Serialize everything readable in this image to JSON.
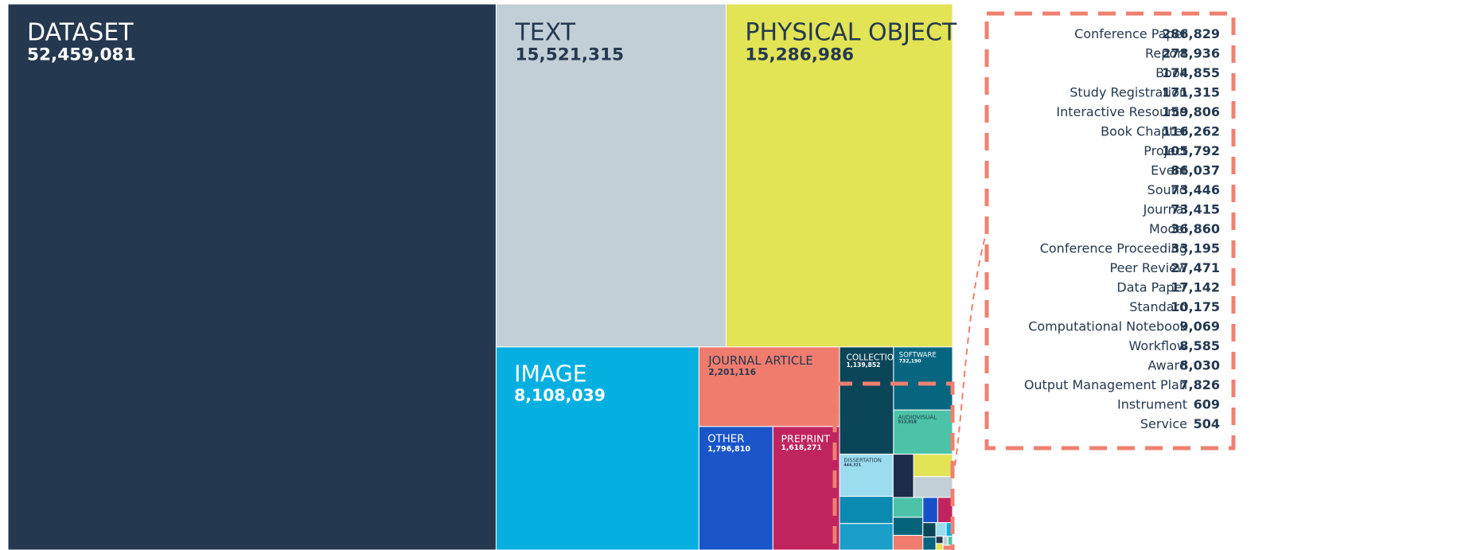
{
  "chart_data": {
    "type": "treemap",
    "items": [
      {
        "name": "DATASET",
        "value": 52459081,
        "value_label": "52,459,081",
        "color": "#243950"
      },
      {
        "name": "TEXT",
        "value": 15521315,
        "value_label": "15,521,315",
        "color": "#c3cfd6"
      },
      {
        "name": "PHYSICAL OBJECT",
        "value": 15286986,
        "value_label": "15,286,986",
        "color": "#e2e355"
      },
      {
        "name": "IMAGE",
        "value": 8108039,
        "value_label": "8,108,039",
        "color": "#05b0e0"
      },
      {
        "name": "JOURNAL ARTICLE",
        "value": 2201116,
        "value_label": "2,201,116",
        "color": "#f07c6e"
      },
      {
        "name": "OTHER",
        "value": 1796810,
        "value_label": "1,796,810",
        "color": "#1a55c9"
      },
      {
        "name": "PREPRINT",
        "value": 1618271,
        "value_label": "1,618,271",
        "color": "#c0245f"
      },
      {
        "name": "COLLECTION",
        "value": 1139852,
        "value_label": "1,139,852",
        "color": "#0a4658"
      },
      {
        "name": "SOFTWARE",
        "value": 732190,
        "value_label": "732,190",
        "color": "#066680"
      },
      {
        "name": "AUDIOVISUAL",
        "value": 513018,
        "value_label": "513,018",
        "color": "#4cc3a8"
      },
      {
        "name": "DISSERTATION",
        "value": 444321,
        "value_label": "444,321",
        "color": "#9bdcef"
      },
      {
        "name": "Conference Paper",
        "value": 286829,
        "value_label": "286,829",
        "color": "#0a8ab0"
      },
      {
        "name": "Report",
        "value": 278936,
        "value_label": "278,936",
        "color": "#1b9ec9"
      },
      {
        "name": "Book",
        "value": 174855,
        "value_label": "174,855",
        "color": "#1c2c4a"
      },
      {
        "name": "Study Registration",
        "value": 171315,
        "value_label": "171,315",
        "color": "#e2e355"
      },
      {
        "name": "Interactive Resource",
        "value": 159806,
        "value_label": "159,806",
        "color": "#c3cfd6"
      },
      {
        "name": "Book Chapter",
        "value": 116262,
        "value_label": "116,262",
        "color": "#4cc3a8"
      },
      {
        "name": "Project",
        "value": 105792,
        "value_label": "105,792",
        "color": "#05647a"
      },
      {
        "name": "Event",
        "value": 86037,
        "value_label": "86,037",
        "color": "#f07c6e"
      },
      {
        "name": "Sound",
        "value": 73446,
        "value_label": "73,446",
        "color": "#1850c8"
      },
      {
        "name": "Journal",
        "value": 73415,
        "value_label": "73,415",
        "color": "#c0245f"
      },
      {
        "name": "Model",
        "value": 36860,
        "value_label": "36,860",
        "color": "#0a4658"
      },
      {
        "name": "Conference Proceeding",
        "value": 33195,
        "value_label": "33,195",
        "color": "#066680"
      },
      {
        "name": "Peer Review",
        "value": 27471,
        "value_label": "27,471",
        "color": "#9bdcef"
      },
      {
        "name": "Data Paper",
        "value": 17142,
        "value_label": "17,142",
        "color": "#05b0e0"
      },
      {
        "name": "Standard",
        "value": 10175,
        "value_label": "10,175",
        "color": "#243950"
      },
      {
        "name": "Computational Notebook",
        "value": 9069,
        "value_label": "9,069",
        "color": "#e2e355"
      },
      {
        "name": "Workflow",
        "value": 8585,
        "value_label": "8,585",
        "color": "#c3cfd6"
      },
      {
        "name": "Award",
        "value": 8030,
        "value_label": "8,030",
        "color": "#4cc3a8"
      },
      {
        "name": "Output Management Plan",
        "value": 7826,
        "value_label": "7,826",
        "color": "#f07c6e"
      },
      {
        "name": "Instrument",
        "value": 609,
        "value_label": "609",
        "color": "#1850c8"
      },
      {
        "name": "Service",
        "value": 504,
        "value_label": "504",
        "color": "#c0245f"
      }
    ]
  }
}
